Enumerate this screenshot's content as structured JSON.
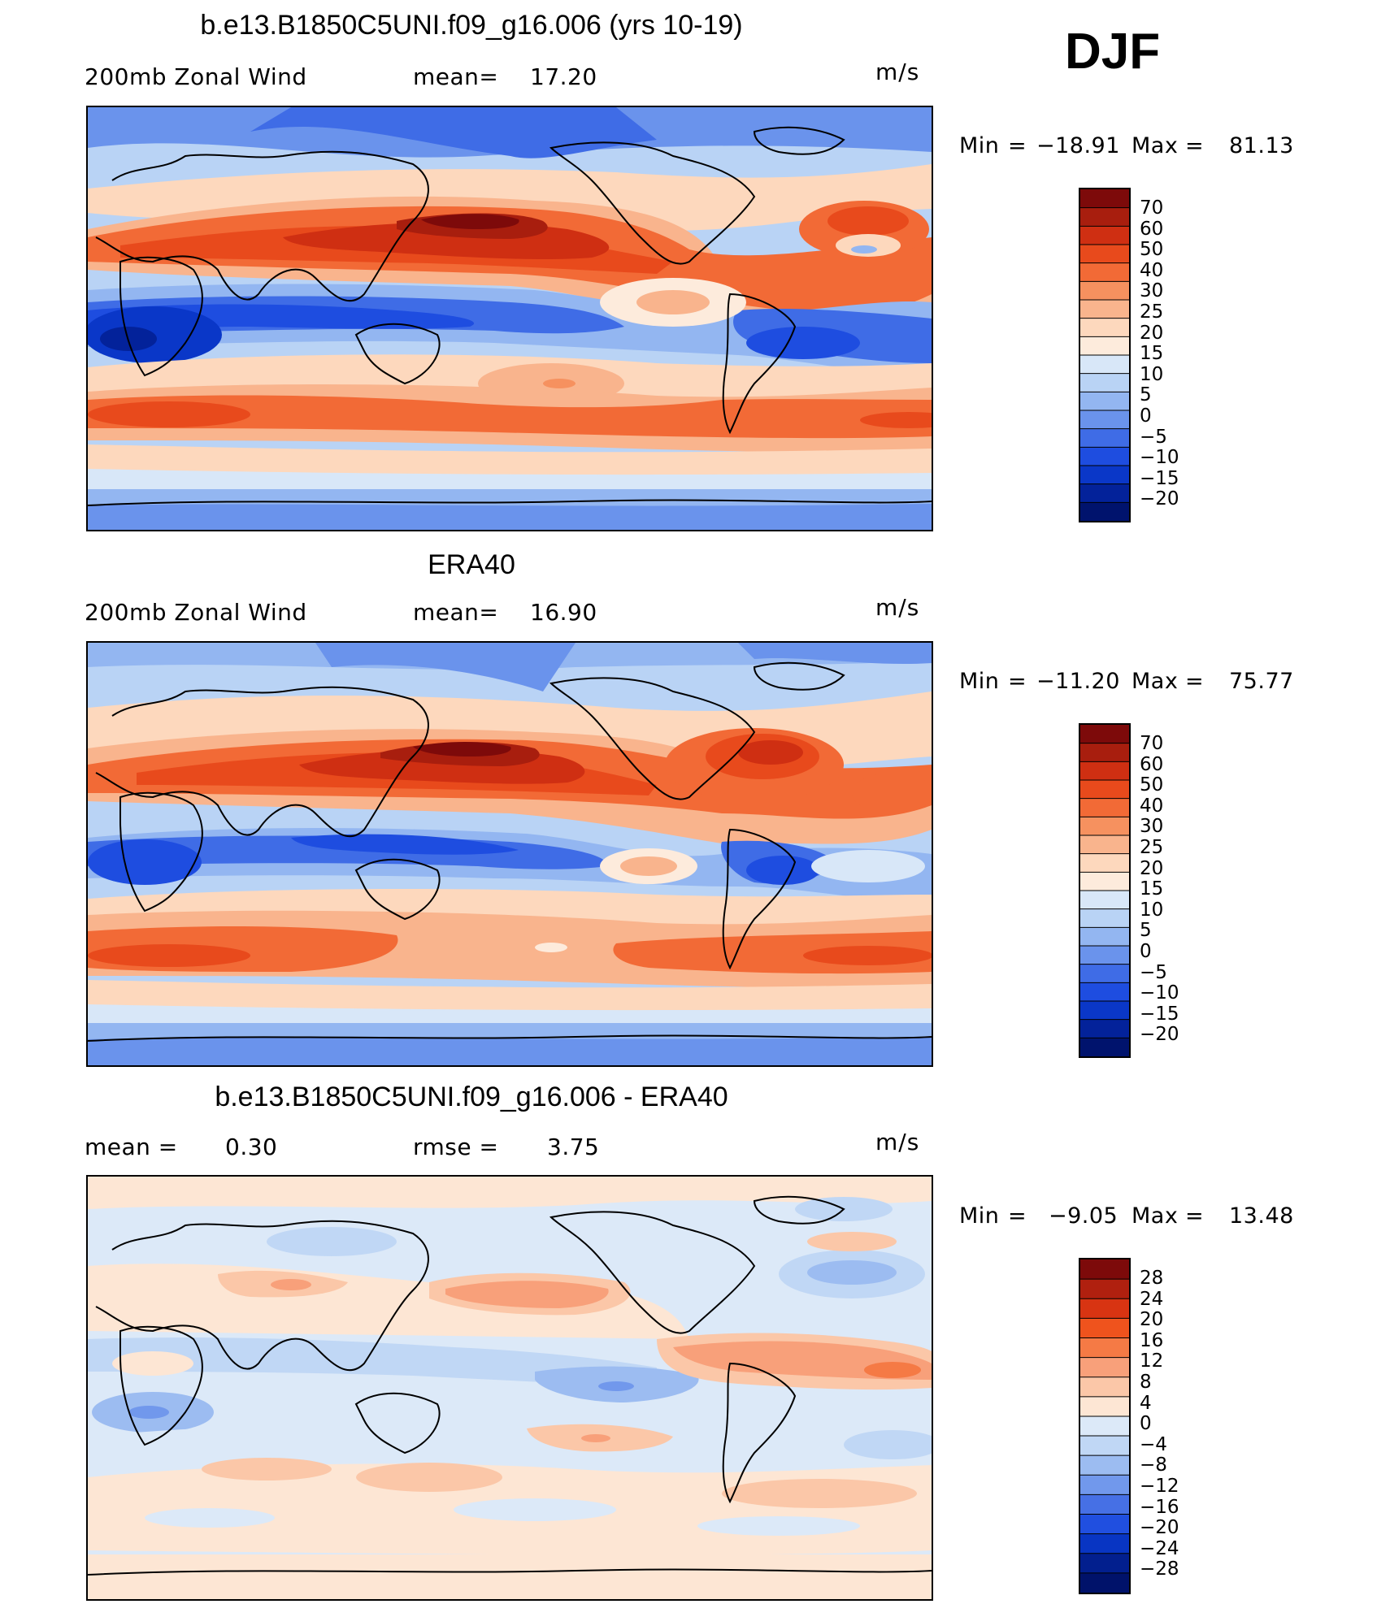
{
  "season": "DJF",
  "panels": [
    {
      "title": "b.e13.B1850C5UNI.f09_g16.006 (yrs 10-19)",
      "variable": "200mb Zonal Wind",
      "stat1_label": "mean=",
      "stat1_value": "17.20",
      "units": "m/s",
      "min_label": "Min",
      "min_value": "−18.91",
      "max_label": "Max",
      "max_value": "81.13",
      "levels": [
        "70",
        "60",
        "50",
        "40",
        "30",
        "25",
        "20",
        "15",
        "10",
        "5",
        "0",
        "−5",
        "−10",
        "−15",
        "−20"
      ]
    },
    {
      "title": "ERA40",
      "variable": "200mb Zonal Wind",
      "stat1_label": "mean=",
      "stat1_value": "16.90",
      "units": "m/s",
      "min_label": "Min",
      "min_value": "−11.20",
      "max_label": "Max",
      "max_value": "75.77",
      "levels": [
        "70",
        "60",
        "50",
        "40",
        "30",
        "25",
        "20",
        "15",
        "10",
        "5",
        "0",
        "−5",
        "−10",
        "−15",
        "−20"
      ]
    },
    {
      "title": "b.e13.B1850C5UNI.f09_g16.006 - ERA40",
      "stat1_label": "mean =",
      "stat1_value": "0.30",
      "stat2_label": "rmse =",
      "stat2_value": "3.75",
      "units": "m/s",
      "min_label": "Min",
      "min_value": "−9.05",
      "max_label": "Max",
      "max_value": "13.48",
      "levels": [
        "28",
        "24",
        "20",
        "16",
        "12",
        "8",
        "4",
        "0",
        "−4",
        "−8",
        "−12",
        "−16",
        "−20",
        "−24",
        "−28"
      ]
    }
  ],
  "colors": {
    "field_scale": [
      "#7d0a0a",
      "#a81e0e",
      "#cf2f12",
      "#e84a1c",
      "#f26a36",
      "#f6915f",
      "#f9b48d",
      "#fdd8bd",
      "#fdebdc",
      "#d8e7f8",
      "#b9d3f5",
      "#93b6f1",
      "#6a93ec",
      "#3f6ce6",
      "#1e4de0",
      "#0a37c8",
      "#03229a",
      "#00136d"
    ],
    "diff_scale": [
      "#7d0a0a",
      "#b0200f",
      "#d83412",
      "#ef531d",
      "#f57a45",
      "#f8a07a",
      "#fbc7a8",
      "#fde6d4",
      "#dce9f8",
      "#c0d7f5",
      "#9cbcf1",
      "#7198ec",
      "#4670e5",
      "#204fe0",
      "#0835c3",
      "#021f8e",
      "#00126a"
    ]
  }
}
